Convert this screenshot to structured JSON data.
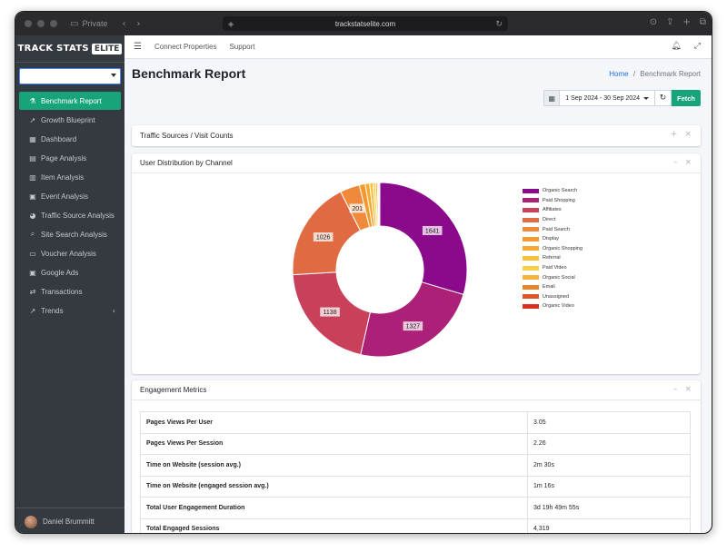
{
  "browser": {
    "private_label": "Private",
    "url": "trackstatselite.com"
  },
  "brand": {
    "name": "TRACK STATS",
    "badge": "ELITE"
  },
  "property_select": {
    "value": ""
  },
  "sidebar": {
    "items": [
      {
        "label": "Benchmark Report",
        "icon": "benchmark-icon",
        "glyph": "⚗"
      },
      {
        "label": "Growth Blueprint",
        "icon": "rocket-icon",
        "glyph": "➚"
      },
      {
        "label": "Dashboard",
        "icon": "dashboard-icon",
        "glyph": "▦"
      },
      {
        "label": "Page Analysis",
        "icon": "page-icon",
        "glyph": "▤"
      },
      {
        "label": "Item Analysis",
        "icon": "bar-chart-icon",
        "glyph": "▥"
      },
      {
        "label": "Event Analysis",
        "icon": "calendar-icon",
        "glyph": "▣"
      },
      {
        "label": "Traffic Source Analysis",
        "icon": "pie-chart-icon",
        "glyph": "◕"
      },
      {
        "label": "Site Search Analysis",
        "icon": "search-icon",
        "glyph": "⌕"
      },
      {
        "label": "Voucher Analysis",
        "icon": "voucher-icon",
        "glyph": "▭"
      },
      {
        "label": "Google Ads",
        "icon": "ads-icon",
        "glyph": "▣"
      },
      {
        "label": "Transactions",
        "icon": "transactions-icon",
        "glyph": "⇄"
      },
      {
        "label": "Trends",
        "icon": "trend-icon",
        "glyph": "↗"
      }
    ],
    "active_index": 0,
    "active_color": "#17a47b"
  },
  "user": {
    "name": "Daniel Brummitt"
  },
  "topnav": {
    "links": [
      "Connect Properties",
      "Support"
    ]
  },
  "page": {
    "title": "Benchmark Report",
    "breadcrumb_home": "Home",
    "breadcrumb_sep": "/",
    "breadcrumb_current": "Benchmark Report"
  },
  "datebar": {
    "range": "1 Sep 2024 - 30 Sep 2024",
    "fetch_label": "Fetch"
  },
  "cards": {
    "traffic_sources_title": "Traffic Sources / Visit Counts",
    "user_distribution_title": "User Distribution by Channel",
    "engagement_title": "Engagement Metrics"
  },
  "chart_data": {
    "type": "pie",
    "donut": true,
    "legend_position": "right",
    "series": [
      {
        "name": "Organic Search",
        "value": 1641,
        "color": "#8b0a8b"
      },
      {
        "name": "Paid Shopping",
        "value": 1327,
        "color": "#ad2077"
      },
      {
        "name": "Affiliates",
        "value": 1138,
        "color": "#c9405a"
      },
      {
        "name": "Direct",
        "value": 1026,
        "color": "#e06b42"
      },
      {
        "name": "Paid Search",
        "value": 201,
        "color": "#f0893a"
      },
      {
        "name": "Display",
        "value": 60,
        "color": "#f59a2a"
      },
      {
        "name": "Organic Shopping",
        "value": 45,
        "color": "#f7a832"
      },
      {
        "name": "Referral",
        "value": 35,
        "color": "#f9c03a"
      },
      {
        "name": "Paid Video",
        "value": 25,
        "color": "#fbcf45"
      },
      {
        "name": "Organic Social",
        "value": 20,
        "color": "#f7b33a"
      },
      {
        "name": "Email",
        "value": 12,
        "color": "#e8832a"
      },
      {
        "name": "Unassigned",
        "value": 8,
        "color": "#e0562a"
      },
      {
        "name": "Organic Video",
        "value": 5,
        "color": "#d9301f"
      }
    ],
    "labeled_values": [
      1641,
      1327,
      1138,
      1026,
      201
    ]
  },
  "engagement": {
    "rows": [
      {
        "label": "Pages Views Per User",
        "value": "3.05"
      },
      {
        "label": "Pages Views Per Session",
        "value": "2.26"
      },
      {
        "label": "Time on Website (session avg.)",
        "value": "2m 30s"
      },
      {
        "label": "Time on Website (engaged session avg.)",
        "value": "1m 16s"
      },
      {
        "label": "Total User Engagement Duration",
        "value": "3d 19h 49m 55s"
      },
      {
        "label": "Total Engaged Sessions",
        "value": "4,319"
      },
      {
        "label": "",
        "value": ""
      }
    ]
  }
}
